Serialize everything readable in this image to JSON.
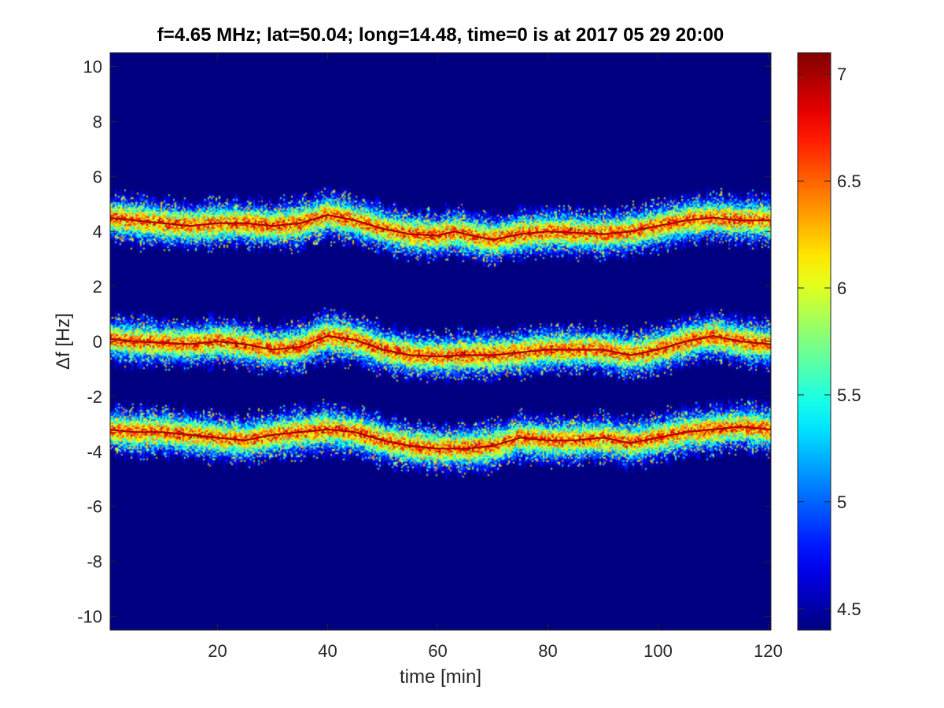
{
  "chart_data": {
    "type": "heatmap",
    "title": "f=4.65 MHz;  lat=50.04; long=14.48, time=0 is at 2017 05 29 20:00",
    "xlabel": "time [min]",
    "ylabel": "Δf [Hz]",
    "xlim": [
      0.5,
      120.5
    ],
    "ylim": [
      -10.5,
      10.5
    ],
    "x_ticks": [
      20,
      40,
      60,
      80,
      100,
      120
    ],
    "y_ticks": [
      10,
      8,
      6,
      4,
      2,
      0,
      -2,
      -4,
      -6,
      -8,
      -10
    ],
    "colorbar": {
      "colormap": "jet",
      "clim": [
        4.4,
        7.1
      ],
      "ticks": [
        4.5,
        5,
        5.5,
        6,
        6.5,
        7
      ]
    },
    "background_value": 4.4,
    "traces": [
      {
        "time": [
          0,
          5,
          10,
          15,
          20,
          25,
          30,
          35,
          40,
          45,
          50,
          55,
          60,
          63,
          65,
          70,
          75,
          80,
          85,
          90,
          95,
          100,
          105,
          110,
          115,
          120
        ],
        "delta_f": [
          4.5,
          4.4,
          4.3,
          4.2,
          4.3,
          4.3,
          4.2,
          4.3,
          4.6,
          4.4,
          4.1,
          3.9,
          3.85,
          4.0,
          3.9,
          3.7,
          3.9,
          4.0,
          3.95,
          3.9,
          4.0,
          4.2,
          4.4,
          4.5,
          4.4,
          4.4
        ],
        "peak_value": 7.1
      },
      {
        "time": [
          0,
          5,
          10,
          15,
          20,
          25,
          30,
          35,
          40,
          45,
          50,
          55,
          60,
          65,
          70,
          75,
          80,
          85,
          90,
          95,
          100,
          105,
          110,
          115,
          120
        ],
        "delta_f": [
          0.1,
          0.0,
          -0.05,
          -0.1,
          0.0,
          -0.1,
          -0.3,
          -0.2,
          0.2,
          0.05,
          -0.3,
          -0.5,
          -0.55,
          -0.5,
          -0.5,
          -0.4,
          -0.3,
          -0.3,
          -0.3,
          -0.5,
          -0.3,
          0.0,
          0.2,
          0.0,
          -0.1
        ],
        "peak_value": 7.1
      },
      {
        "time": [
          0,
          5,
          10,
          15,
          20,
          25,
          30,
          35,
          40,
          45,
          50,
          55,
          60,
          65,
          70,
          75,
          80,
          85,
          90,
          95,
          100,
          105,
          110,
          115,
          120
        ],
        "delta_f": [
          -3.2,
          -3.3,
          -3.3,
          -3.4,
          -3.5,
          -3.6,
          -3.4,
          -3.3,
          -3.2,
          -3.3,
          -3.6,
          -3.8,
          -3.9,
          -3.9,
          -3.8,
          -3.5,
          -3.6,
          -3.6,
          -3.5,
          -3.7,
          -3.5,
          -3.3,
          -3.2,
          -3.1,
          -3.2
        ],
        "peak_value": 7.1
      }
    ]
  }
}
